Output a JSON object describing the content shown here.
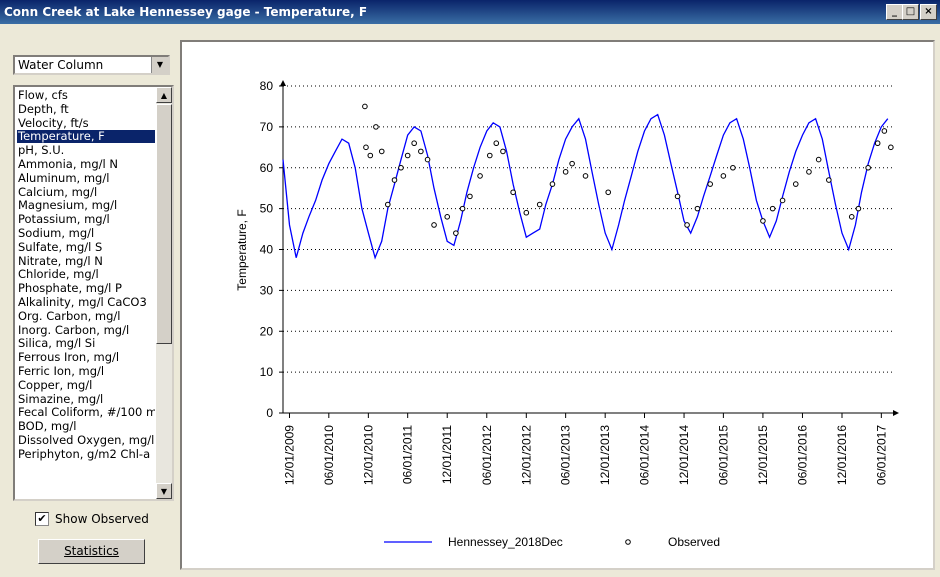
{
  "window": {
    "title": "Conn Creek at Lake Hennessey gage - Temperature, F"
  },
  "dropdown": {
    "value": "Water Column"
  },
  "listbox": {
    "selected_index": 3,
    "items": [
      "Flow, cfs",
      "Depth, ft",
      "Velocity, ft/s",
      "Temperature, F",
      "pH, S.U.",
      "Ammonia, mg/l N",
      "Aluminum, mg/l",
      "Calcium, mg/l",
      "Magnesium, mg/l",
      "Potassium, mg/l",
      "Sodium, mg/l",
      "Sulfate, mg/l S",
      "Nitrate, mg/l N",
      "Chloride, mg/l",
      "Phosphate, mg/l P",
      "Alkalinity, mg/l CaCO3",
      "Org. Carbon, mg/l",
      "Inorg. Carbon, mg/l",
      "Silica, mg/l Si",
      "Ferrous Iron, mg/l",
      "Ferric Ion, mg/l",
      "Copper, mg/l",
      "Simazine, mg/l",
      "Fecal Coliform, #/100 m",
      "BOD, mg/l",
      "Dissolved Oxygen, mg/l",
      "Periphyton, g/m2 Chl-a"
    ]
  },
  "checkbox": {
    "label": "Show Observed",
    "checked": true
  },
  "button": {
    "label": "Statistics"
  },
  "chart_data": {
    "type": "line",
    "y_label": "Temperature, F",
    "ylim": [
      0,
      80
    ],
    "yticks": [
      0,
      10,
      20,
      30,
      40,
      50,
      60,
      70,
      80
    ],
    "grid": true,
    "xlim": [
      "11/01/2009",
      "07/25/2017"
    ],
    "xticks": [
      "12/01/2009",
      "06/01/2010",
      "12/01/2010",
      "06/01/2011",
      "12/01/2011",
      "06/01/2012",
      "12/01/2012",
      "06/01/2013",
      "12/01/2013",
      "06/01/2014",
      "12/01/2014",
      "06/01/2015",
      "12/01/2015",
      "06/01/2016",
      "12/01/2016",
      "06/01/2017"
    ],
    "series": [
      {
        "name": "Hennessey_2018Dec",
        "color": "#0000ff",
        "type": "line",
        "x": [
          "11/01/2009",
          "12/01/2009",
          "01/01/2010",
          "02/01/2010",
          "03/01/2010",
          "04/01/2010",
          "05/01/2010",
          "06/01/2010",
          "07/01/2010",
          "08/01/2010",
          "09/01/2010",
          "10/01/2010",
          "11/01/2010",
          "12/01/2010",
          "01/01/2011",
          "02/01/2011",
          "03/01/2011",
          "04/01/2011",
          "05/01/2011",
          "06/01/2011",
          "07/01/2011",
          "08/01/2011",
          "09/01/2011",
          "10/01/2011",
          "11/01/2011",
          "12/01/2011",
          "01/01/2012",
          "02/01/2012",
          "03/01/2012",
          "04/01/2012",
          "05/01/2012",
          "06/01/2012",
          "07/01/2012",
          "08/01/2012",
          "09/01/2012",
          "10/01/2012",
          "11/01/2012",
          "12/01/2012",
          "01/01/2013",
          "02/01/2013",
          "03/01/2013",
          "04/01/2013",
          "05/01/2013",
          "06/01/2013",
          "07/01/2013",
          "08/01/2013",
          "09/01/2013",
          "10/01/2013",
          "11/01/2013",
          "12/01/2013",
          "01/01/2014",
          "02/01/2014",
          "03/01/2014",
          "04/01/2014",
          "05/01/2014",
          "06/01/2014",
          "07/01/2014",
          "08/01/2014",
          "09/01/2014",
          "10/01/2014",
          "11/01/2014",
          "12/01/2014",
          "01/01/2015",
          "02/01/2015",
          "03/01/2015",
          "04/01/2015",
          "05/01/2015",
          "06/01/2015",
          "07/01/2015",
          "08/01/2015",
          "09/01/2015",
          "10/01/2015",
          "11/01/2015",
          "12/01/2015",
          "01/01/2016",
          "02/01/2016",
          "03/01/2016",
          "04/01/2016",
          "05/01/2016",
          "06/01/2016",
          "07/01/2016",
          "08/01/2016",
          "09/01/2016",
          "10/01/2016",
          "11/01/2016",
          "12/01/2016",
          "01/01/2017",
          "02/01/2017",
          "03/01/2017",
          "04/01/2017",
          "05/01/2017",
          "06/01/2017",
          "07/01/2017"
        ],
        "values": [
          62,
          46,
          38,
          44,
          48,
          52,
          57,
          61,
          64,
          67,
          66,
          60,
          50,
          44,
          38,
          42,
          50,
          56,
          62,
          68,
          70,
          69,
          63,
          55,
          48,
          42,
          41,
          47,
          54,
          60,
          65,
          69,
          71,
          70,
          64,
          56,
          49,
          43,
          44,
          45,
          51,
          56,
          62,
          67,
          70,
          72,
          67,
          59,
          51,
          44,
          40,
          46,
          52,
          58,
          64,
          69,
          72,
          73,
          68,
          61,
          54,
          47,
          44,
          48,
          53,
          58,
          63,
          68,
          71,
          72,
          67,
          60,
          52,
          47,
          43,
          47,
          53,
          59,
          64,
          68,
          71,
          72,
          67,
          59,
          51,
          44,
          40,
          46,
          54,
          61,
          66,
          70,
          72
        ]
      },
      {
        "name": "Observed",
        "color": "#000000",
        "type": "scatter",
        "x": [
          "11/15/2010",
          "11/20/2010",
          "12/10/2010",
          "01/05/2011",
          "02/01/2011",
          "03/01/2011",
          "04/01/2011",
          "05/01/2011",
          "06/01/2011",
          "07/01/2011",
          "08/01/2011",
          "09/01/2011",
          "10/01/2011",
          "12/01/2011",
          "01/10/2012",
          "02/10/2012",
          "03/15/2012",
          "05/01/2012",
          "06/15/2012",
          "07/15/2012",
          "08/15/2012",
          "10/01/2012",
          "12/01/2012",
          "02/01/2013",
          "04/01/2013",
          "06/01/2013",
          "07/01/2013",
          "09/01/2013",
          "12/15/2013",
          "11/01/2014",
          "12/15/2014",
          "02/01/2015",
          "04/01/2015",
          "06/01/2015",
          "07/15/2015",
          "12/01/2015",
          "01/15/2016",
          "03/01/2016",
          "05/01/2016",
          "07/01/2016",
          "08/15/2016",
          "10/01/2016",
          "01/15/2017",
          "02/15/2017",
          "04/01/2017",
          "05/15/2017",
          "06/15/2017",
          "07/15/2017"
        ],
        "values": [
          75,
          65,
          63,
          70,
          64,
          51,
          57,
          60,
          63,
          66,
          64,
          62,
          46,
          48,
          44,
          50,
          53,
          58,
          63,
          66,
          64,
          54,
          49,
          51,
          56,
          59,
          61,
          58,
          54,
          53,
          46,
          50,
          56,
          58,
          60,
          47,
          50,
          52,
          56,
          59,
          62,
          57,
          48,
          50,
          60,
          66,
          69,
          65
        ]
      }
    ]
  }
}
